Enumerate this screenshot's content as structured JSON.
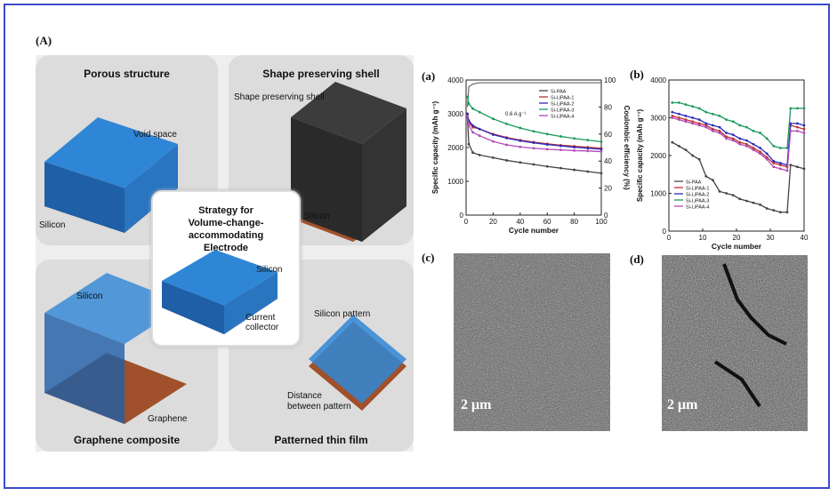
{
  "figure_label": "(A)",
  "schematic": {
    "quadrants": {
      "porous": {
        "title": "Porous structure",
        "labels": [
          "Void space",
          "Silicon"
        ]
      },
      "shell": {
        "title": "Shape preserving shell",
        "labels": [
          "Shape preserving shell",
          "Silicon"
        ]
      },
      "graphene": {
        "title": "Graphene composite",
        "labels": [
          "Silicon",
          "Graphene"
        ]
      },
      "patterned": {
        "title": "Patterned thin film",
        "labels": [
          "Silicon pattern",
          "Distance\nbetween pattern"
        ]
      }
    },
    "center": {
      "title": "Strategy for\nVolume-change-accommodating\nElectrode",
      "labels": [
        "Silicon",
        "Current\ncollector"
      ]
    }
  },
  "panel_labels": {
    "a": "(a)",
    "b": "(b)",
    "c": "(c)",
    "d": "(d)"
  },
  "scale_bars": {
    "c": "2 μm",
    "d": "2 μm"
  },
  "colors": {
    "frame": "#3b4bc8",
    "silicon": "#2f86d6",
    "copper": "#a0502a"
  },
  "chart_data": [
    {
      "type": "line",
      "panel": "(a)",
      "xlabel": "Cycle number",
      "ylabel": "Specific capacity (mAh g⁻¹)",
      "y2label": "Coulombic efficiency (%)",
      "xlim": [
        0,
        100
      ],
      "ylim": [
        0,
        4000
      ],
      "y2lim": [
        0,
        100
      ],
      "xticks": [
        0,
        20,
        40,
        60,
        80,
        100
      ],
      "yticks": [
        0,
        1000,
        2000,
        3000,
        4000
      ],
      "y2ticks": [
        0,
        20,
        40,
        60,
        80,
        100
      ],
      "annotation": "0.6 A g⁻¹",
      "legend_position": "top-right",
      "x": [
        1,
        2,
        5,
        10,
        20,
        30,
        40,
        50,
        60,
        70,
        80,
        90,
        100
      ],
      "series": [
        {
          "name": "Si-PAA",
          "color": "#444444",
          "values": [
            2900,
            2100,
            1850,
            1780,
            1700,
            1620,
            1560,
            1500,
            1440,
            1390,
            1340,
            1290,
            1240
          ]
        },
        {
          "name": "Si-LiPAA-1",
          "color": "#c0302f",
          "values": [
            3000,
            2750,
            2600,
            2550,
            2400,
            2300,
            2220,
            2160,
            2110,
            2070,
            2040,
            2010,
            1980
          ]
        },
        {
          "name": "Si-LiPAA-2",
          "color": "#2b2bb8",
          "values": [
            3000,
            2800,
            2650,
            2550,
            2380,
            2280,
            2200,
            2140,
            2090,
            2050,
            2010,
            1980,
            1950
          ]
        },
        {
          "name": "Si-LiPAA-3",
          "color": "#1a9a5a",
          "values": [
            3500,
            3300,
            3150,
            3050,
            2850,
            2700,
            2580,
            2480,
            2400,
            2330,
            2270,
            2220,
            2170
          ]
        },
        {
          "name": "Si-LiPAA-4",
          "color": "#b04ab8",
          "values": [
            2900,
            2650,
            2450,
            2350,
            2180,
            2080,
            2020,
            1980,
            1950,
            1930,
            1910,
            1900,
            1880
          ]
        }
      ],
      "ce_series": {
        "values_percent": [
          80,
          95,
          97,
          98,
          98,
          98,
          98,
          98,
          98,
          98,
          98,
          98,
          98
        ]
      }
    },
    {
      "type": "line",
      "panel": "(b)",
      "xlabel": "Cycle number",
      "ylabel": "Specific capacity (mAh g⁻¹)",
      "xlim": [
        0,
        40
      ],
      "ylim": [
        0,
        4000
      ],
      "xticks": [
        0,
        10,
        20,
        30,
        40
      ],
      "yticks": [
        0,
        1000,
        2000,
        3000,
        4000
      ],
      "legend_position": "bottom-left",
      "x": [
        1,
        3,
        5,
        7,
        9,
        11,
        13,
        15,
        17,
        19,
        21,
        23,
        25,
        27,
        29,
        31,
        33,
        35,
        36,
        38,
        40
      ],
      "series": [
        {
          "name": "Si-PAA",
          "color": "#444444",
          "values": [
            2350,
            2250,
            2150,
            2000,
            1900,
            1450,
            1350,
            1050,
            1000,
            950,
            850,
            800,
            750,
            700,
            600,
            550,
            500,
            500,
            1750,
            1700,
            1650
          ]
        },
        {
          "name": "Si-LiPAA-1",
          "color": "#c0302f",
          "values": [
            3050,
            3000,
            2950,
            2900,
            2850,
            2800,
            2700,
            2650,
            2500,
            2450,
            2350,
            2300,
            2200,
            2100,
            1950,
            1800,
            1750,
            1700,
            2800,
            2750,
            2700
          ]
        },
        {
          "name": "Si-LiPAA-2",
          "color": "#2b2bb8",
          "values": [
            3150,
            3100,
            3050,
            3000,
            2950,
            2850,
            2800,
            2750,
            2600,
            2550,
            2450,
            2400,
            2300,
            2200,
            2050,
            1850,
            1800,
            1750,
            2850,
            2850,
            2800
          ]
        },
        {
          "name": "Si-LiPAA-3",
          "color": "#1a9a5a",
          "values": [
            3400,
            3400,
            3350,
            3300,
            3250,
            3150,
            3100,
            3050,
            2950,
            2900,
            2800,
            2750,
            2650,
            2600,
            2450,
            2250,
            2200,
            2200,
            3250,
            3250,
            3250
          ]
        },
        {
          "name": "Si-LiPAA-4",
          "color": "#b04ab8",
          "values": [
            3000,
            2950,
            2900,
            2850,
            2800,
            2750,
            2650,
            2600,
            2450,
            2400,
            2300,
            2250,
            2150,
            2050,
            1900,
            1700,
            1650,
            1600,
            2650,
            2650,
            2600
          ]
        }
      ]
    }
  ]
}
